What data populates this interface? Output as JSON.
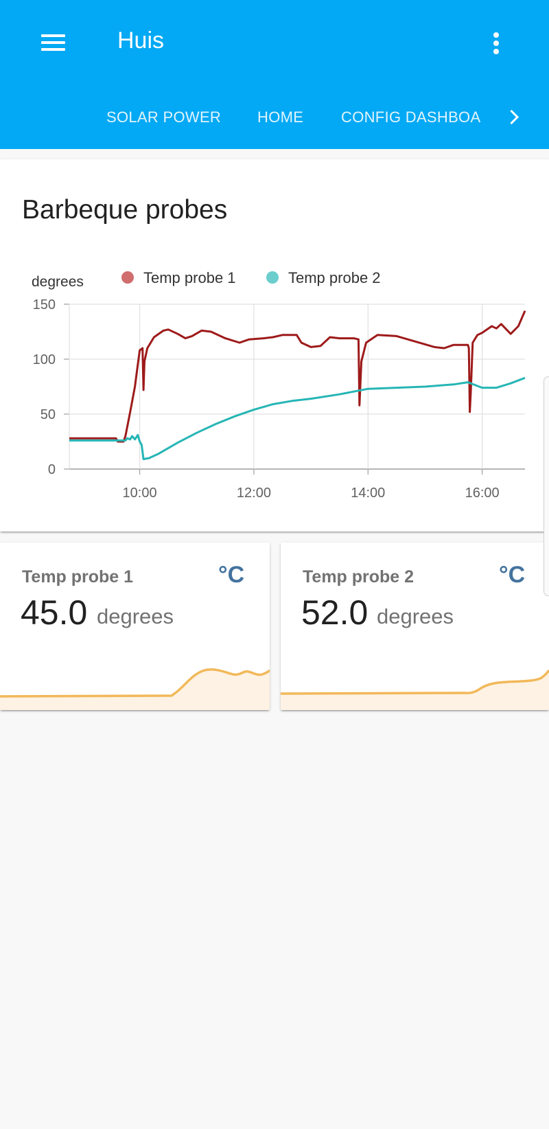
{
  "header": {
    "title": "Huis",
    "menu_icon": "menu-icon",
    "overflow_icon": "more-vert-icon"
  },
  "tabs": [
    {
      "label": "SOLAR POWER"
    },
    {
      "label": "HOME"
    },
    {
      "label": "CONFIG DASHBOA"
    }
  ],
  "tab_next_icon": "chevron-right-icon",
  "colors": {
    "header": "#03a9f4",
    "probe1": "#9e1a1a",
    "probe2": "#26b5b5",
    "probe1_legend": "#d06d6d",
    "probe2_legend": "#6ccdcd",
    "sparkline": "#f2b85a",
    "sparkline_fill": "#fdf2e3",
    "icon": "#44739e"
  },
  "chart_card": {
    "title": "Barbeque probes"
  },
  "chart_data": {
    "type": "line",
    "title": "Barbeque probes",
    "ylabel": "degrees",
    "xlabel": "",
    "ylim": [
      0,
      150
    ],
    "yticks": [
      0,
      50,
      100,
      150
    ],
    "xticks": [
      "10:00",
      "12:00",
      "14:00",
      "16:00"
    ],
    "xlim": [
      "08:46",
      "16:45"
    ],
    "grid": true,
    "legend_position": "top",
    "series": [
      {
        "name": "Temp probe 1",
        "points": [
          [
            "08:46",
            28
          ],
          [
            "09:35",
            28
          ],
          [
            "09:37",
            25
          ],
          [
            "09:43",
            25
          ],
          [
            "09:45",
            30
          ],
          [
            "09:50",
            52
          ],
          [
            "09:55",
            75
          ],
          [
            "09:58",
            95
          ],
          [
            "10:00",
            108
          ],
          [
            "10:03",
            110
          ],
          [
            "10:04",
            72
          ],
          [
            "10:05",
            98
          ],
          [
            "10:08",
            110
          ],
          [
            "10:15",
            120
          ],
          [
            "10:25",
            126
          ],
          [
            "10:30",
            127
          ],
          [
            "10:40",
            123
          ],
          [
            "10:48",
            119
          ],
          [
            "10:55",
            121
          ],
          [
            "11:05",
            126
          ],
          [
            "11:15",
            125
          ],
          [
            "11:30",
            119
          ],
          [
            "11:45",
            115
          ],
          [
            "11:55",
            118
          ],
          [
            "12:10",
            119
          ],
          [
            "12:20",
            120
          ],
          [
            "12:30",
            122
          ],
          [
            "12:45",
            122
          ],
          [
            "12:50",
            115
          ],
          [
            "13:00",
            111
          ],
          [
            "13:10",
            112
          ],
          [
            "13:20",
            120
          ],
          [
            "13:30",
            119
          ],
          [
            "13:45",
            119
          ],
          [
            "13:50",
            118
          ],
          [
            "13:51",
            58
          ],
          [
            "13:53",
            98
          ],
          [
            "13:58",
            115
          ],
          [
            "14:10",
            122
          ],
          [
            "14:30",
            121
          ],
          [
            "14:50",
            116
          ],
          [
            "15:10",
            111
          ],
          [
            "15:20",
            110
          ],
          [
            "15:30",
            113
          ],
          [
            "15:45",
            113
          ],
          [
            "15:46",
            110
          ],
          [
            "15:47",
            52
          ],
          [
            "15:48",
            70
          ],
          [
            "15:50",
            115
          ],
          [
            "15:55",
            122
          ],
          [
            "16:00",
            124
          ],
          [
            "16:10",
            130
          ],
          [
            "16:15",
            128
          ],
          [
            "16:20",
            132
          ],
          [
            "16:30",
            123
          ],
          [
            "16:38",
            130
          ],
          [
            "16:45",
            144
          ]
        ]
      },
      {
        "name": "Temp probe 2",
        "points": [
          [
            "08:46",
            26
          ],
          [
            "09:45",
            26
          ],
          [
            "09:47",
            28
          ],
          [
            "09:50",
            27
          ],
          [
            "09:52",
            30
          ],
          [
            "09:55",
            27
          ],
          [
            "09:58",
            31
          ],
          [
            "10:00",
            25
          ],
          [
            "10:02",
            22
          ],
          [
            "10:04",
            9
          ],
          [
            "10:10",
            10
          ],
          [
            "10:20",
            14
          ],
          [
            "10:40",
            24
          ],
          [
            "11:00",
            33
          ],
          [
            "11:20",
            41
          ],
          [
            "11:40",
            48
          ],
          [
            "12:00",
            54
          ],
          [
            "12:20",
            59
          ],
          [
            "12:40",
            62
          ],
          [
            "13:00",
            64
          ],
          [
            "13:30",
            68
          ],
          [
            "14:00",
            73
          ],
          [
            "14:30",
            74
          ],
          [
            "15:00",
            75
          ],
          [
            "15:30",
            77
          ],
          [
            "15:45",
            79
          ],
          [
            "16:00",
            74
          ],
          [
            "16:15",
            74
          ],
          [
            "16:30",
            78
          ],
          [
            "16:45",
            83
          ]
        ]
      }
    ]
  },
  "sensors": [
    {
      "name": "Temp probe 1",
      "value": "45.0",
      "unit": "degrees",
      "icon": "°C",
      "icon_name": "thermometer-celsius-icon"
    },
    {
      "name": "Temp probe 2",
      "value": "52.0",
      "unit": "degrees",
      "icon": "°C",
      "icon_name": "thermometer-celsius-icon"
    }
  ]
}
